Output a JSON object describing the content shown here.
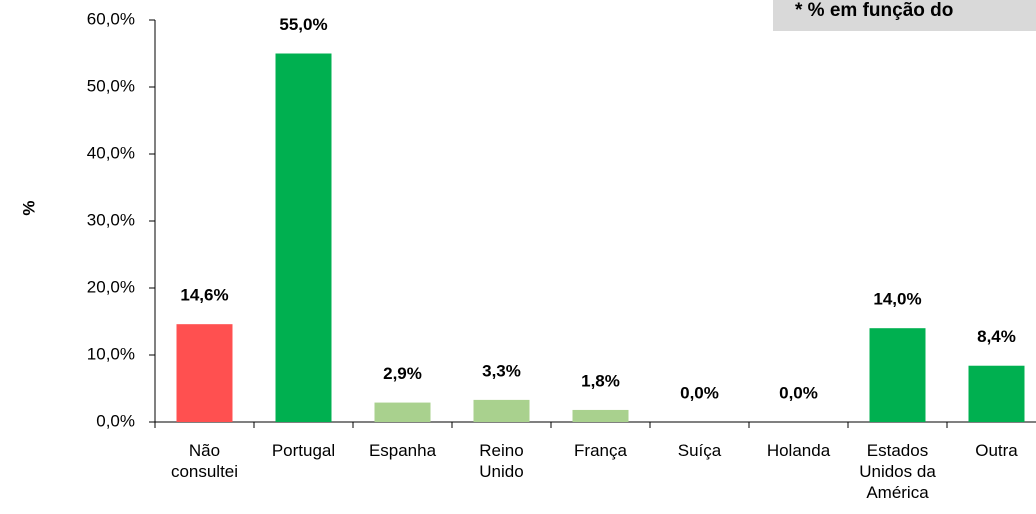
{
  "chart_data": {
    "type": "bar",
    "y_label": "%",
    "annotation": "* % em função do",
    "categories": [
      "Não consultei",
      "Portugal",
      "Espanha",
      "Reino Unido",
      "França",
      "Suíça",
      "Holanda",
      "Estados Unidos da América",
      "Outra"
    ],
    "values": [
      14.6,
      55.0,
      2.9,
      3.3,
      1.8,
      0.0,
      0.0,
      14.0,
      8.4
    ],
    "value_labels": [
      "14,6%",
      "55,0%",
      "2,9%",
      "3,3%",
      "1,8%",
      "0,0%",
      "0,0%",
      "14,0%",
      "8,4%"
    ],
    "colors": [
      "#ff5050",
      "#00b050",
      "#a9d18e",
      "#a9d18e",
      "#a9d18e",
      "#a9d18e",
      "#a9d18e",
      "#00b050",
      "#00b050"
    ],
    "ylim": [
      0,
      60
    ],
    "yticks": [
      {
        "value": 0,
        "label": "0,0%"
      },
      {
        "value": 10,
        "label": "10,0%"
      },
      {
        "value": 20,
        "label": "20,0%"
      },
      {
        "value": 30,
        "label": "30,0%"
      },
      {
        "value": 40,
        "label": "40,0%"
      },
      {
        "value": 50,
        "label": "50,0%"
      },
      {
        "value": 60,
        "label": "60,0%"
      }
    ],
    "grid": false
  }
}
